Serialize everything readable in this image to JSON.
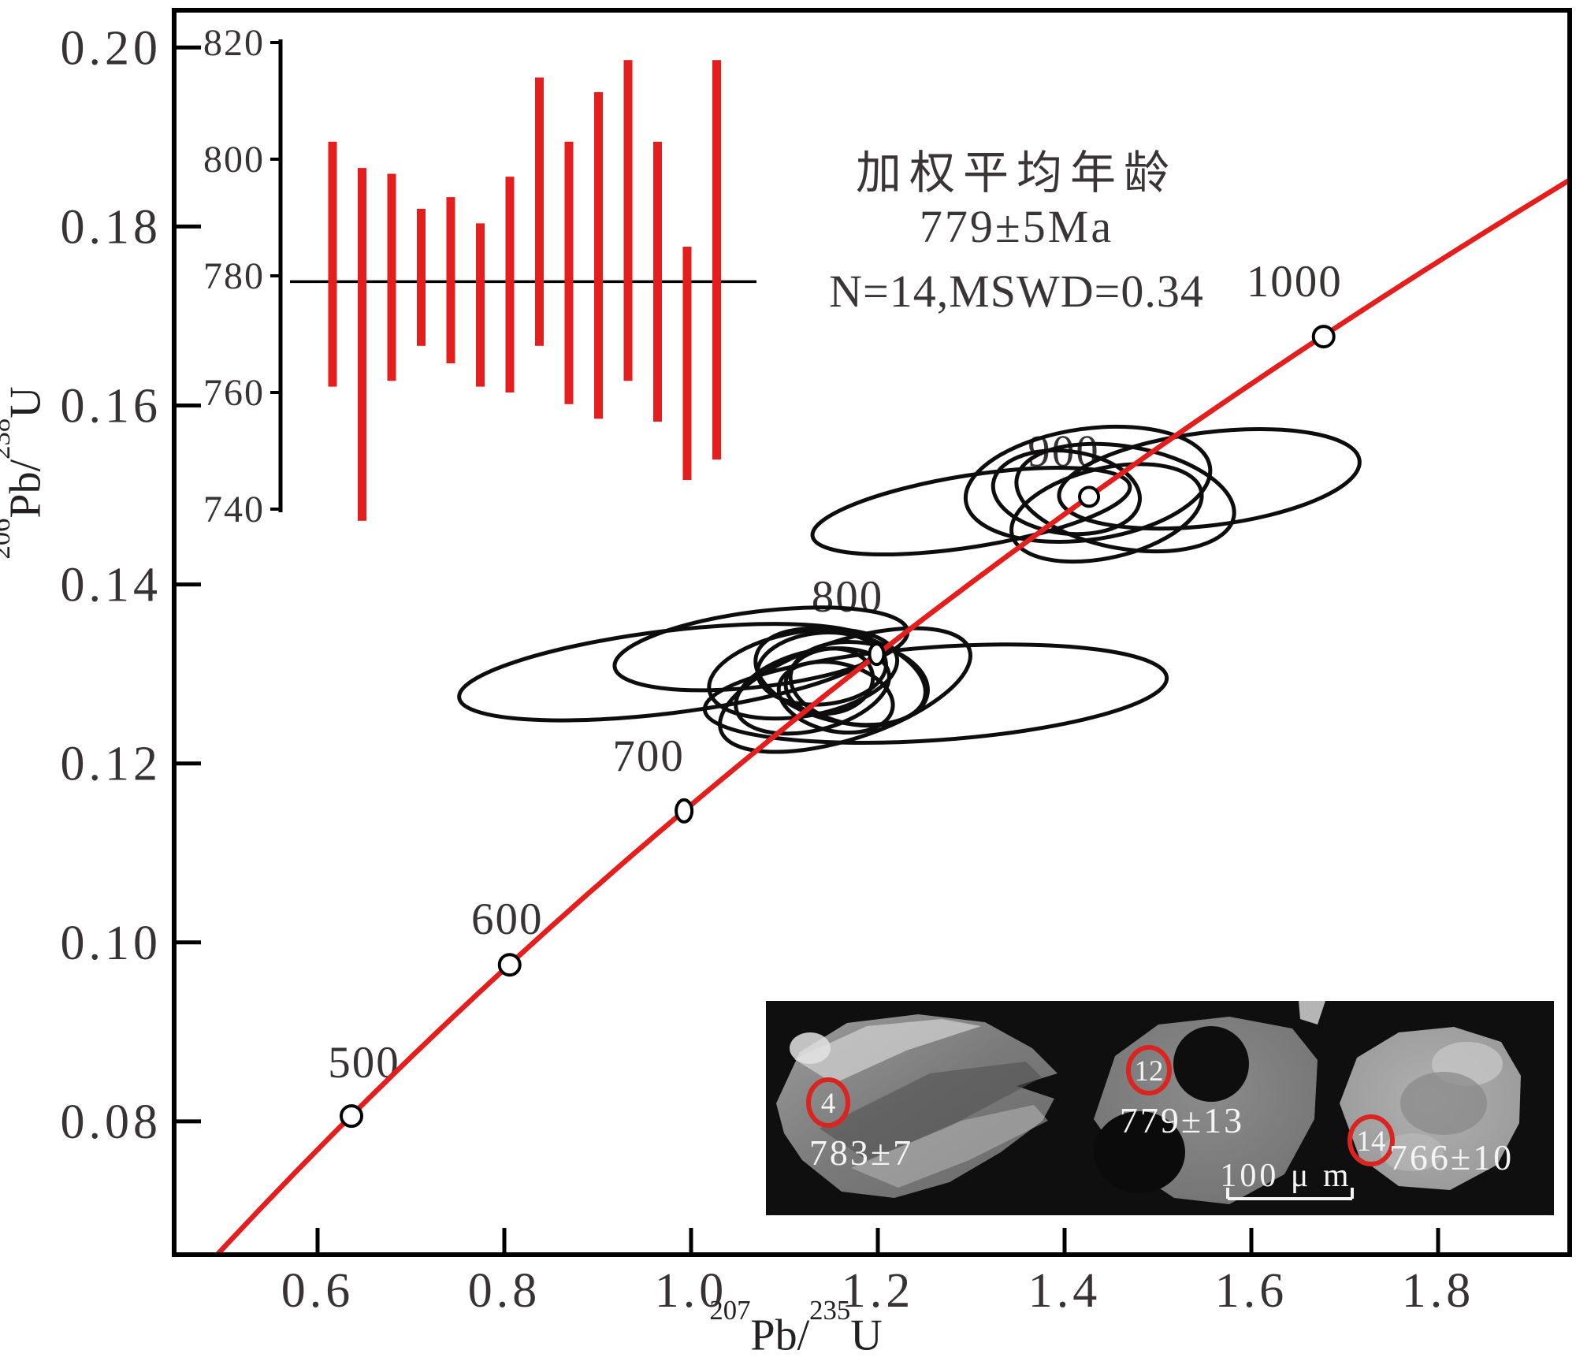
{
  "colors": {
    "accent_red": "#e31e1c",
    "ellipse_stroke": "#0d0d0d",
    "text_dark": "#383233",
    "panel_bg": "#0f0f0f",
    "ring_red": "#d92420",
    "marker_fill": "#ffffff"
  },
  "axes": {
    "x_title": {
      "sup1": "207",
      "base1": "Pb/",
      "sup2": "235",
      "base2": "U"
    },
    "y_title": {
      "sup1": "206",
      "base1": "Pb/",
      "sup2": "238",
      "base2": "U"
    }
  },
  "chart_data": [
    {
      "type": "scatter",
      "name": "u-pb-concordia-diagram",
      "xlabel": "207Pb/235U",
      "ylabel": "206Pb/238U",
      "xlim": [
        0.444,
        1.943
      ],
      "ylim": [
        0.062,
        0.205
      ],
      "grid": "off",
      "x_tick_labels": [
        "0.6",
        "0.8",
        "1.0",
        "1.2",
        "1.4",
        "1.6",
        "1.8"
      ],
      "y_tick_labels": [
        "0.20",
        "0.18",
        "0.16",
        "0.14",
        "0.12",
        "0.10",
        "0.08"
      ],
      "concordia_markers": [
        {
          "age": "500",
          "x": 0.6363,
          "y": 0.0806
        },
        {
          "age": "600",
          "x": 0.8057,
          "y": 0.0975
        },
        {
          "age": "700",
          "x": 0.9925,
          "y": 0.1147
        },
        {
          "age": "800",
          "x": 1.1987,
          "y": 0.1322
        },
        {
          "age": "900",
          "x": 1.4262,
          "y": 0.1498
        },
        {
          "age": "1000",
          "x": 1.6774,
          "y": 0.1677
        }
      ],
      "error_ellipses_780": [
        [
          0.975,
          0.1302,
          0.225,
          0.0046,
          -7
        ],
        [
          1.262,
          0.1278,
          0.248,
          0.0052,
          -4
        ],
        [
          1.075,
          0.1328,
          0.158,
          0.0042,
          -7
        ],
        [
          1.165,
          0.1282,
          0.14,
          0.0055,
          -18
        ],
        [
          1.12,
          0.13,
          0.102,
          0.0047,
          -10
        ],
        [
          1.16,
          0.1297,
          0.093,
          0.005,
          14
        ],
        [
          1.13,
          0.1281,
          0.084,
          0.0044,
          -14
        ],
        [
          1.18,
          0.1289,
          0.074,
          0.0046,
          8
        ],
        [
          1.14,
          0.1306,
          0.069,
          0.004,
          -5
        ],
        [
          1.155,
          0.1274,
          0.062,
          0.0038,
          12
        ],
        [
          1.148,
          0.1292,
          0.047,
          0.0036,
          -9
        ]
      ],
      "error_ellipses_900": [
        [
          1.3,
          0.1482,
          0.172,
          0.004,
          -9
        ],
        [
          1.555,
          0.1518,
          0.162,
          0.0052,
          -7
        ],
        [
          1.425,
          0.1512,
          0.132,
          0.0062,
          -8
        ],
        [
          1.465,
          0.1497,
          0.118,
          0.0057,
          10
        ],
        [
          1.445,
          0.148,
          0.104,
          0.005,
          -13
        ],
        [
          1.402,
          0.1503,
          0.079,
          0.0046,
          7
        ]
      ]
    },
    {
      "type": "bar",
      "name": "weighted-mean-age-inset",
      "title_lines": [
        "加权平均年龄",
        "779±5Ma",
        "N=14,MSWD=0.34"
      ],
      "ylim": [
        730,
        826
      ],
      "y_tick_labels": [
        "820",
        "800",
        "780",
        "760",
        "740"
      ],
      "mean_age": 779,
      "n": 14,
      "mswd": 0.34,
      "bars": [
        [
          761,
          803
        ],
        [
          738,
          798.5
        ],
        [
          762,
          797.5
        ],
        [
          768,
          791.5
        ],
        [
          765,
          793.5
        ],
        [
          761,
          789
        ],
        [
          760,
          797
        ],
        [
          768,
          814
        ],
        [
          758,
          803
        ],
        [
          755.5,
          811.5
        ],
        [
          762,
          817
        ],
        [
          755,
          803
        ],
        [
          745,
          785
        ],
        [
          748.5,
          817
        ]
      ]
    }
  ],
  "cl_panel": {
    "spots": [
      {
        "id": "4",
        "age": "783±7"
      },
      {
        "id": "12",
        "age": "779±13"
      },
      {
        "id": "14",
        "age": "766±10"
      }
    ],
    "scale_label": "100 μ m"
  }
}
